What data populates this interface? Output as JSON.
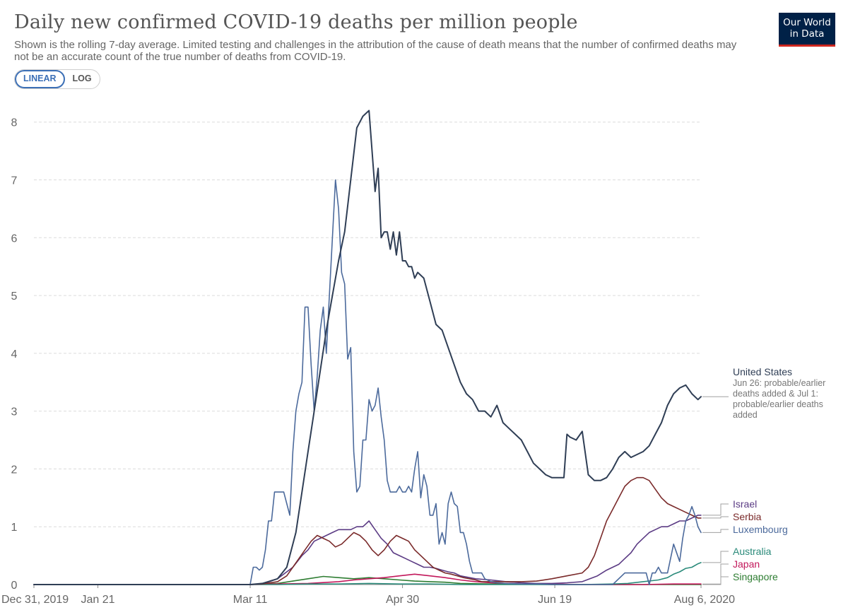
{
  "header": {
    "title": "Daily new confirmed COVID-19 deaths per million people",
    "subtitle": "Shown is the rolling 7-day average. Limited testing and challenges in the attribution of the cause of death means that the number of confirmed deaths may not be an accurate count of the true number of deaths from COVID-19.",
    "logo_line1": "Our World",
    "logo_line2": "in Data"
  },
  "controls": {
    "linear_label": "LINEAR",
    "log_label": "LOG",
    "active": "LINEAR"
  },
  "chart_data": {
    "type": "line",
    "title": "Daily new confirmed COVID-19 deaths per million people",
    "xlabel": "",
    "ylabel": "",
    "x_unit": "days since Dec 31, 2019",
    "xlim": [
      0,
      219
    ],
    "ylim": [
      0,
      8.4
    ],
    "y_ticks": [
      0,
      1,
      2,
      3,
      4,
      5,
      6,
      7,
      8
    ],
    "x_ticks": [
      {
        "day": 0,
        "label": "Dec 31, 2019"
      },
      {
        "day": 21,
        "label": "Jan 21"
      },
      {
        "day": 71,
        "label": "Mar 11"
      },
      {
        "day": 121,
        "label": "Apr 30"
      },
      {
        "day": 171,
        "label": "Jun 19"
      },
      {
        "day": 219,
        "label": "Aug 6, 2020"
      }
    ],
    "grid": true,
    "series": [
      {
        "name": "United States",
        "color": "#2f3e55",
        "annotation": "Jun 26: probable/earlier deaths added & Jul 1: probable/earlier deaths added",
        "x": [
          0,
          71,
          75,
          80,
          83,
          86,
          88,
          90,
          92,
          94,
          96,
          98,
          100,
          102,
          104,
          106,
          108,
          110,
          112,
          113,
          114,
          115,
          116,
          117,
          118,
          119,
          120,
          121,
          122,
          123,
          124,
          125,
          126,
          128,
          130,
          132,
          134,
          136,
          138,
          140,
          142,
          144,
          146,
          148,
          150,
          152,
          154,
          156,
          158,
          160,
          162,
          164,
          166,
          168,
          170,
          172,
          174,
          175,
          176,
          178,
          180,
          182,
          184,
          186,
          188,
          190,
          192,
          194,
          196,
          198,
          200,
          202,
          204,
          206,
          208,
          210,
          212,
          214,
          216,
          218,
          219
        ],
        "y": [
          0,
          0,
          0.02,
          0.1,
          0.3,
          0.9,
          1.6,
          2.3,
          3.0,
          3.7,
          4.4,
          5.0,
          5.6,
          6.1,
          7.0,
          7.9,
          8.1,
          8.2,
          6.8,
          7.2,
          6.0,
          6.1,
          6.1,
          5.8,
          6.1,
          5.7,
          6.1,
          5.6,
          5.6,
          5.5,
          5.5,
          5.3,
          5.4,
          5.3,
          4.9,
          4.5,
          4.4,
          4.1,
          3.8,
          3.5,
          3.3,
          3.2,
          3.0,
          3.0,
          2.9,
          3.1,
          2.8,
          2.7,
          2.6,
          2.5,
          2.3,
          2.1,
          2.0,
          1.9,
          1.85,
          1.85,
          1.85,
          2.6,
          2.55,
          2.5,
          2.65,
          1.9,
          1.8,
          1.8,
          1.85,
          2.0,
          2.2,
          2.3,
          2.2,
          2.25,
          2.3,
          2.4,
          2.6,
          2.8,
          3.1,
          3.3,
          3.4,
          3.45,
          3.3,
          3.2,
          3.25
        ]
      },
      {
        "name": "Luxembourg",
        "color": "#4c6a9c",
        "x": [
          0,
          71,
          72,
          73,
          74,
          75,
          76,
          77,
          78,
          79,
          80,
          81,
          82,
          83,
          84,
          85,
          86,
          87,
          88,
          89,
          90,
          91,
          92,
          93,
          94,
          95,
          96,
          97,
          98,
          99,
          100,
          101,
          102,
          103,
          104,
          105,
          106,
          107,
          108,
          109,
          110,
          111,
          112,
          113,
          114,
          115,
          116,
          117,
          118,
          119,
          120,
          121,
          122,
          123,
          124,
          125,
          126,
          127,
          128,
          129,
          130,
          131,
          132,
          133,
          134,
          135,
          136,
          137,
          138,
          139,
          140,
          141,
          142,
          143,
          144,
          145,
          146,
          147,
          148,
          150,
          152,
          155,
          160,
          166,
          170,
          180,
          190,
          194,
          195,
          196,
          197,
          198,
          199,
          200,
          201,
          202,
          203,
          204,
          205,
          206,
          208,
          210,
          212,
          213,
          214,
          215,
          216,
          217,
          218,
          219
        ],
        "y": [
          0,
          0,
          0.3,
          0.3,
          0.25,
          0.3,
          0.6,
          1.1,
          1.1,
          1.6,
          1.6,
          1.6,
          1.6,
          1.4,
          1.2,
          2.3,
          3.0,
          3.3,
          3.5,
          4.8,
          4.8,
          3.8,
          3.0,
          3.6,
          4.4,
          4.8,
          4.0,
          5.0,
          6.0,
          7.0,
          6.5,
          5.4,
          5.2,
          3.9,
          4.1,
          2.3,
          1.6,
          1.7,
          2.5,
          2.5,
          3.2,
          3.0,
          3.1,
          3.4,
          2.9,
          2.5,
          1.8,
          1.6,
          1.6,
          1.6,
          1.7,
          1.6,
          1.6,
          1.7,
          1.6,
          2.0,
          2.3,
          1.5,
          1.9,
          1.7,
          1.2,
          1.2,
          1.4,
          0.7,
          0.9,
          0.7,
          1.4,
          1.6,
          1.4,
          1.35,
          0.9,
          0.9,
          0.7,
          0.4,
          0.2,
          0.2,
          0.2,
          0.2,
          0.1,
          0.05,
          0.03,
          0.02,
          0.01,
          0.01,
          0,
          0,
          0,
          0.2,
          0.2,
          0.2,
          0.2,
          0.2,
          0.2,
          0.2,
          0.2,
          0,
          0.2,
          0.2,
          0.3,
          0.2,
          0.2,
          0.7,
          0.4,
          0.8,
          1.1,
          1.2,
          1.35,
          1.2,
          1.0,
          0.9
        ]
      },
      {
        "name": "Serbia",
        "color": "#7a2a2a",
        "x": [
          0,
          71,
          75,
          80,
          83,
          85,
          87,
          89,
          91,
          93,
          95,
          97,
          99,
          101,
          103,
          105,
          107,
          109,
          111,
          113,
          115,
          117,
          119,
          121,
          123,
          125,
          127,
          129,
          131,
          133,
          135,
          137,
          139,
          141,
          143,
          145,
          147,
          150,
          155,
          160,
          165,
          170,
          175,
          180,
          182,
          184,
          186,
          188,
          190,
          192,
          194,
          196,
          198,
          200,
          202,
          204,
          206,
          208,
          210,
          212,
          214,
          216,
          218,
          219
        ],
        "y": [
          0,
          0,
          0.01,
          0.05,
          0.15,
          0.3,
          0.45,
          0.6,
          0.75,
          0.85,
          0.8,
          0.75,
          0.65,
          0.7,
          0.8,
          0.9,
          0.85,
          0.75,
          0.6,
          0.5,
          0.6,
          0.75,
          0.85,
          0.8,
          0.75,
          0.6,
          0.5,
          0.4,
          0.3,
          0.25,
          0.2,
          0.18,
          0.15,
          0.12,
          0.1,
          0.08,
          0.05,
          0.05,
          0.05,
          0.05,
          0.06,
          0.1,
          0.15,
          0.2,
          0.3,
          0.5,
          0.8,
          1.1,
          1.3,
          1.5,
          1.7,
          1.8,
          1.85,
          1.85,
          1.8,
          1.65,
          1.5,
          1.4,
          1.35,
          1.3,
          1.25,
          1.2,
          1.15,
          1.15
        ]
      },
      {
        "name": "Israel",
        "color": "#5b3b84",
        "x": [
          0,
          71,
          75,
          80,
          85,
          88,
          90,
          92,
          94,
          96,
          98,
          100,
          102,
          104,
          106,
          108,
          110,
          112,
          114,
          116,
          118,
          120,
          122,
          124,
          126,
          128,
          130,
          132,
          134,
          136,
          138,
          140,
          145,
          150,
          155,
          160,
          165,
          170,
          175,
          180,
          185,
          188,
          190,
          192,
          194,
          196,
          198,
          200,
          202,
          204,
          206,
          208,
          210,
          212,
          214,
          216,
          218,
          219
        ],
        "y": [
          0,
          0,
          0.01,
          0.1,
          0.3,
          0.5,
          0.6,
          0.75,
          0.8,
          0.85,
          0.9,
          0.95,
          0.95,
          0.95,
          1.0,
          1.0,
          1.1,
          0.95,
          0.8,
          0.7,
          0.55,
          0.5,
          0.45,
          0.4,
          0.35,
          0.3,
          0.3,
          0.28,
          0.25,
          0.22,
          0.2,
          0.15,
          0.1,
          0.08,
          0.05,
          0.03,
          0.02,
          0.02,
          0.03,
          0.05,
          0.15,
          0.25,
          0.3,
          0.35,
          0.45,
          0.55,
          0.7,
          0.8,
          0.9,
          0.95,
          1.0,
          1.0,
          1.05,
          1.1,
          1.1,
          1.15,
          1.2,
          1.2
        ]
      },
      {
        "name": "Australia",
        "color": "#2a8a7a",
        "x": [
          0,
          71,
          80,
          90,
          100,
          110,
          120,
          130,
          140,
          150,
          160,
          170,
          180,
          190,
          195,
          200,
          205,
          208,
          210,
          212,
          214,
          216,
          218,
          219
        ],
        "y": [
          0,
          0,
          0,
          0.01,
          0.01,
          0.02,
          0.01,
          0.01,
          0.0,
          0.0,
          0.0,
          0.0,
          0.0,
          0.01,
          0.02,
          0.05,
          0.08,
          0.12,
          0.18,
          0.22,
          0.28,
          0.3,
          0.36,
          0.38
        ]
      },
      {
        "name": "Japan",
        "color": "#c2185b",
        "x": [
          0,
          71,
          80,
          90,
          100,
          105,
          110,
          115,
          120,
          125,
          130,
          135,
          140,
          145,
          150,
          160,
          170,
          180,
          190,
          200,
          210,
          219
        ],
        "y": [
          0,
          0,
          0.01,
          0.02,
          0.05,
          0.08,
          0.1,
          0.12,
          0.15,
          0.18,
          0.15,
          0.12,
          0.08,
          0.05,
          0.03,
          0.01,
          0.01,
          0.0,
          0.0,
          0.0,
          0.01,
          0.01
        ]
      },
      {
        "name": "Singapore",
        "color": "#2e7d32",
        "x": [
          0,
          71,
          80,
          85,
          90,
          95,
          100,
          105,
          110,
          115,
          120,
          125,
          130,
          135,
          140,
          150,
          160,
          170,
          180,
          190,
          200,
          219
        ],
        "y": [
          0,
          0,
          0.02,
          0.06,
          0.1,
          0.14,
          0.12,
          0.1,
          0.12,
          0.1,
          0.08,
          0.06,
          0.05,
          0.04,
          0.02,
          0.01,
          0.01,
          0.0,
          0.0,
          0.0,
          0.0,
          0.0
        ]
      }
    ]
  }
}
